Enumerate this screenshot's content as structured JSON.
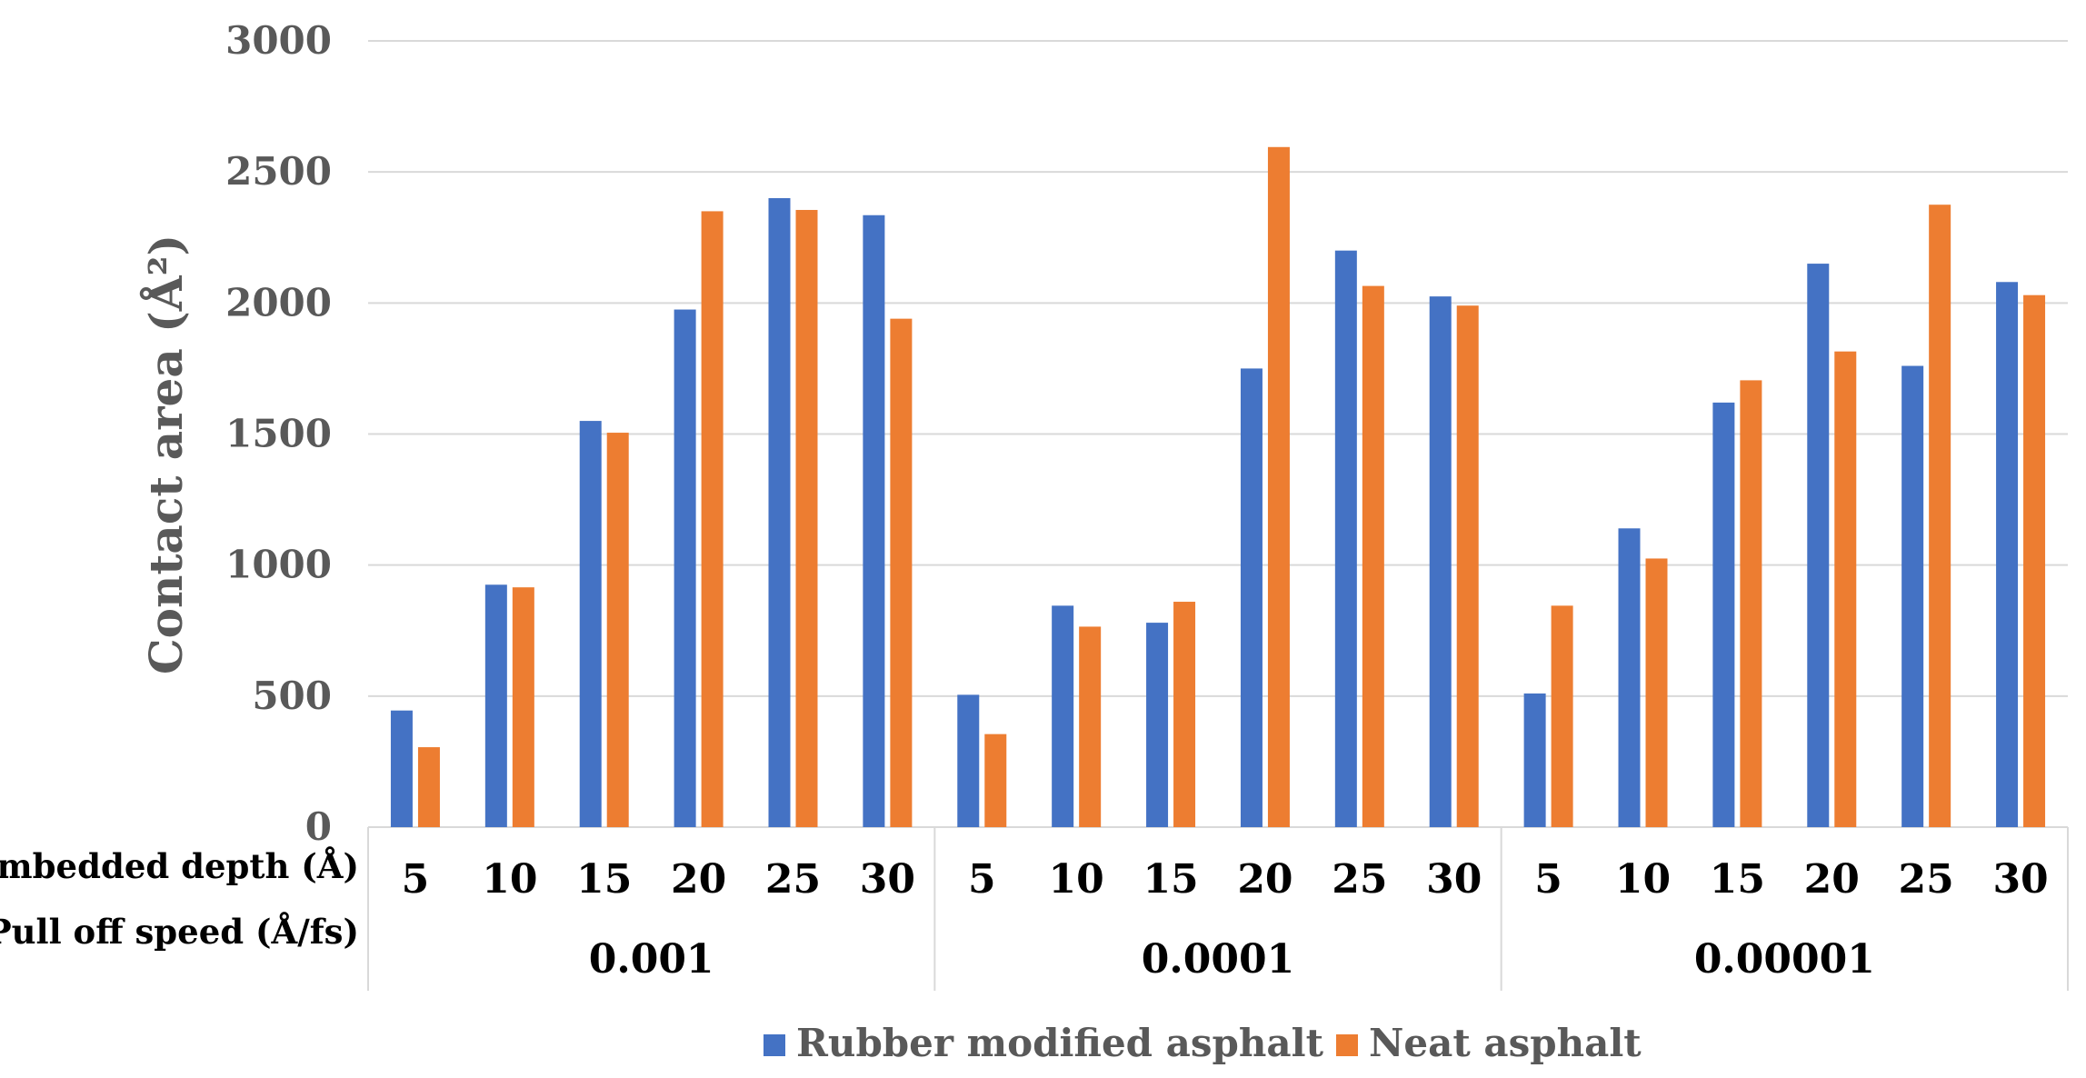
{
  "chart_data": {
    "type": "bar",
    "ylabel": "Contact area (Å²)",
    "ylim": [
      0,
      3000
    ],
    "yticks": [
      0,
      500,
      1000,
      1500,
      2000,
      2500,
      3000
    ],
    "grid": true,
    "legend_position": "bottom",
    "depth_row_label": "Embedded depth (Å)",
    "speed_row_label": "Pull off speed (Å/fs)",
    "groups": [
      {
        "speed": "0.001",
        "depths": [
          "5",
          "10",
          "15",
          "20",
          "25",
          "30"
        ]
      },
      {
        "speed": "0.0001",
        "depths": [
          "5",
          "10",
          "15",
          "20",
          "25",
          "30"
        ]
      },
      {
        "speed": "0.00001",
        "depths": [
          "5",
          "10",
          "15",
          "20",
          "25",
          "30"
        ]
      }
    ],
    "series": [
      {
        "name": "Rubber modified asphalt",
        "color": "#4472c4",
        "values": [
          445,
          925,
          1550,
          1975,
          2400,
          2335,
          505,
          845,
          780,
          1750,
          2200,
          2025,
          510,
          1140,
          1620,
          2150,
          1760,
          2080
        ]
      },
      {
        "name": "Neat asphalt",
        "color": "#ed7d31",
        "values": [
          305,
          915,
          1505,
          2350,
          2355,
          1940,
          355,
          765,
          860,
          2595,
          2065,
          1990,
          845,
          1025,
          1705,
          1815,
          2375,
          2030
        ]
      }
    ]
  }
}
